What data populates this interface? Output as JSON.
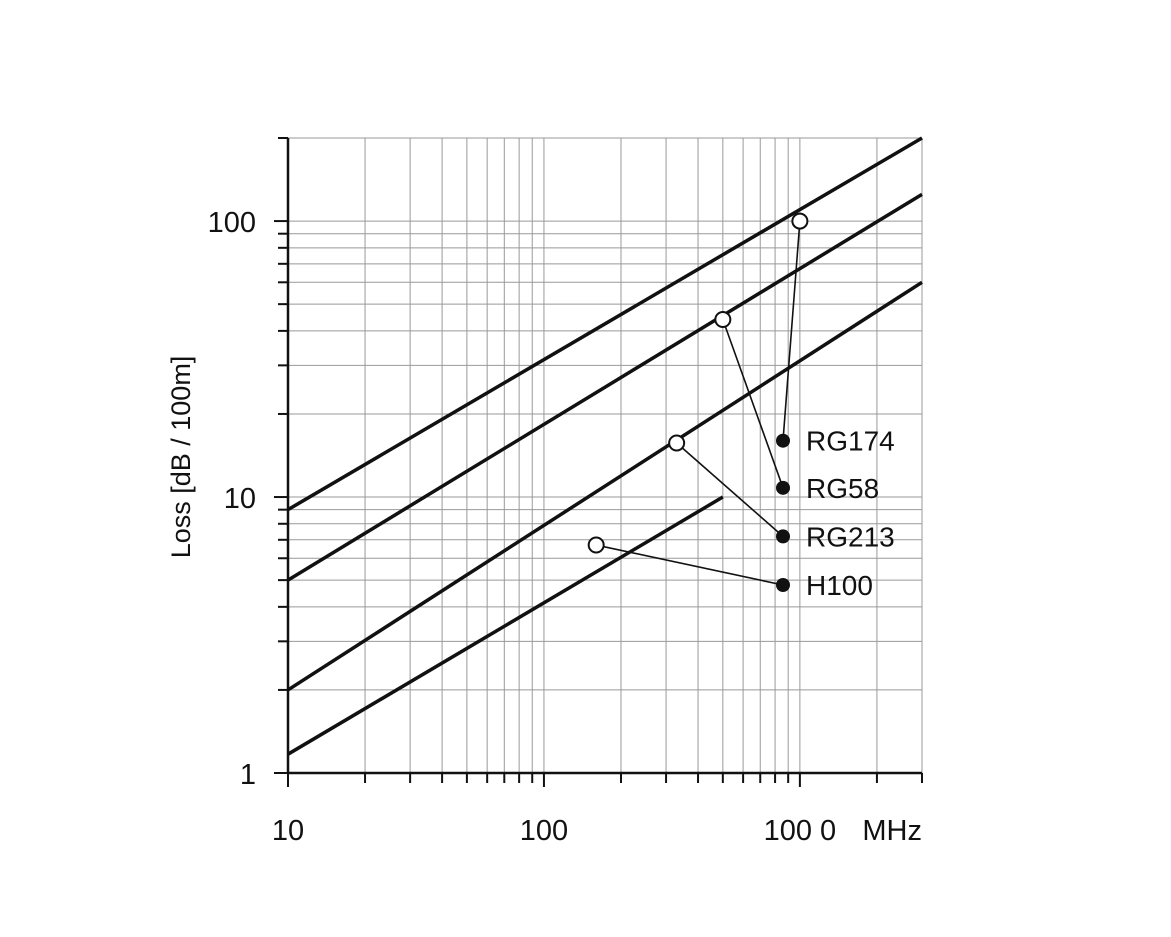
{
  "chart_data": {
    "type": "line",
    "title": "",
    "xlabel": "MHz",
    "ylabel": "Loss [dB / 100m]",
    "x_scale": "log",
    "y_scale": "log",
    "xlim": [
      10,
      3000
    ],
    "ylim": [
      1,
      200
    ],
    "grid": true,
    "x_ticks": [
      {
        "value": 10,
        "label": "10"
      },
      {
        "value": 100,
        "label": "100"
      },
      {
        "value": 1000,
        "label": "100 0"
      }
    ],
    "y_ticks": [
      {
        "value": 1,
        "label": "1"
      },
      {
        "value": 10,
        "label": "10"
      },
      {
        "value": 100,
        "label": "100"
      }
    ],
    "series": [
      {
        "name": "RG174",
        "x": [
          10,
          3000
        ],
        "y": [
          9,
          200
        ],
        "marker": {
          "x": 1000,
          "y": 100
        },
        "legend_y": 16
      },
      {
        "name": "RG58",
        "x": [
          10,
          3000
        ],
        "y": [
          5,
          125
        ],
        "marker": {
          "x": 500,
          "y": 44
        },
        "legend_y": 10.8
      },
      {
        "name": "RG213",
        "x": [
          10,
          3000
        ],
        "y": [
          2,
          60
        ],
        "marker": {
          "x": 330,
          "y": 15.7
        },
        "legend_y": 7.2
      },
      {
        "name": "H100",
        "x": [
          10,
          500
        ],
        "y": [
          1.17,
          10
        ],
        "marker": {
          "x": 160,
          "y": 6.7
        },
        "legend_y": 4.8
      }
    ]
  },
  "colors": {
    "line": "#111111",
    "grid": "#999999",
    "background": "#ffffff"
  }
}
